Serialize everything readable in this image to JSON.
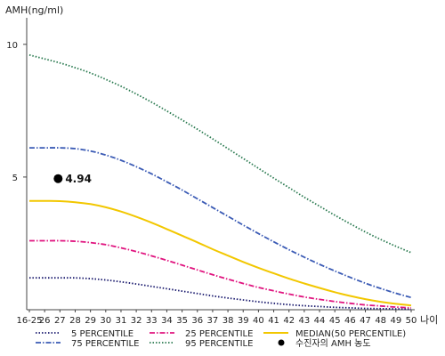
{
  "chart_data": {
    "type": "line",
    "ylabel": "AMH(ng/ml)",
    "xlabel": "나이",
    "categories": [
      "16-25",
      "26",
      "27",
      "28",
      "29",
      "30",
      "31",
      "32",
      "33",
      "34",
      "35",
      "36",
      "37",
      "38",
      "39",
      "40",
      "41",
      "42",
      "43",
      "44",
      "45",
      "46",
      "47",
      "48",
      "49",
      "50"
    ],
    "y_ticks": [
      "5",
      "10"
    ],
    "ylim": [
      0,
      11
    ],
    "grid": false,
    "legend_position": "bottom",
    "series": [
      {
        "name": "5 PERCENTILE",
        "color": "#1a1a6e",
        "style": "dotted",
        "values": [
          1.2,
          1.2,
          1.2,
          1.2,
          1.17,
          1.12,
          1.05,
          0.97,
          0.88,
          0.79,
          0.7,
          0.61,
          0.52,
          0.44,
          0.37,
          0.3,
          0.24,
          0.19,
          0.15,
          0.12,
          0.09,
          0.07,
          0.05,
          0.04,
          0.03,
          0.02
        ]
      },
      {
        "name": "25 PERCENTILE",
        "color": "#e0147f",
        "style": "dashdot",
        "values": [
          2.6,
          2.6,
          2.6,
          2.58,
          2.53,
          2.45,
          2.33,
          2.19,
          2.03,
          1.86,
          1.68,
          1.5,
          1.32,
          1.15,
          0.99,
          0.84,
          0.71,
          0.59,
          0.48,
          0.39,
          0.31,
          0.24,
          0.18,
          0.14,
          0.1,
          0.07
        ]
      },
      {
        "name": "MEDIAN(50 PERCENTILE)",
        "color": "#f2c700",
        "style": "solid",
        "values": [
          4.1,
          4.1,
          4.09,
          4.05,
          3.98,
          3.86,
          3.7,
          3.5,
          3.28,
          3.04,
          2.79,
          2.54,
          2.28,
          2.04,
          1.8,
          1.58,
          1.37,
          1.17,
          0.99,
          0.82,
          0.66,
          0.52,
          0.4,
          0.3,
          0.22,
          0.16
        ]
      },
      {
        "name": "75 PERCENTILE",
        "color": "#3b5bb5",
        "style": "dashdot",
        "values": [
          6.1,
          6.1,
          6.1,
          6.07,
          5.98,
          5.83,
          5.63,
          5.39,
          5.12,
          4.82,
          4.51,
          4.18,
          3.85,
          3.52,
          3.19,
          2.87,
          2.56,
          2.26,
          1.98,
          1.71,
          1.46,
          1.22,
          1.0,
          0.8,
          0.62,
          0.46
        ]
      },
      {
        "name": "95 PERCENTILE",
        "color": "#2a7a50",
        "style": "dotted",
        "values": [
          9.6,
          9.45,
          9.3,
          9.12,
          8.92,
          8.68,
          8.42,
          8.13,
          7.82,
          7.49,
          7.15,
          6.8,
          6.44,
          6.07,
          5.7,
          5.33,
          4.96,
          4.6,
          4.24,
          3.9,
          3.56,
          3.24,
          2.93,
          2.65,
          2.39,
          2.15
        ]
      }
    ],
    "patient": {
      "name": "수진자의 AMH 농도",
      "x": "27",
      "value": 4.94,
      "label": "4.94",
      "color": "#000000"
    }
  }
}
